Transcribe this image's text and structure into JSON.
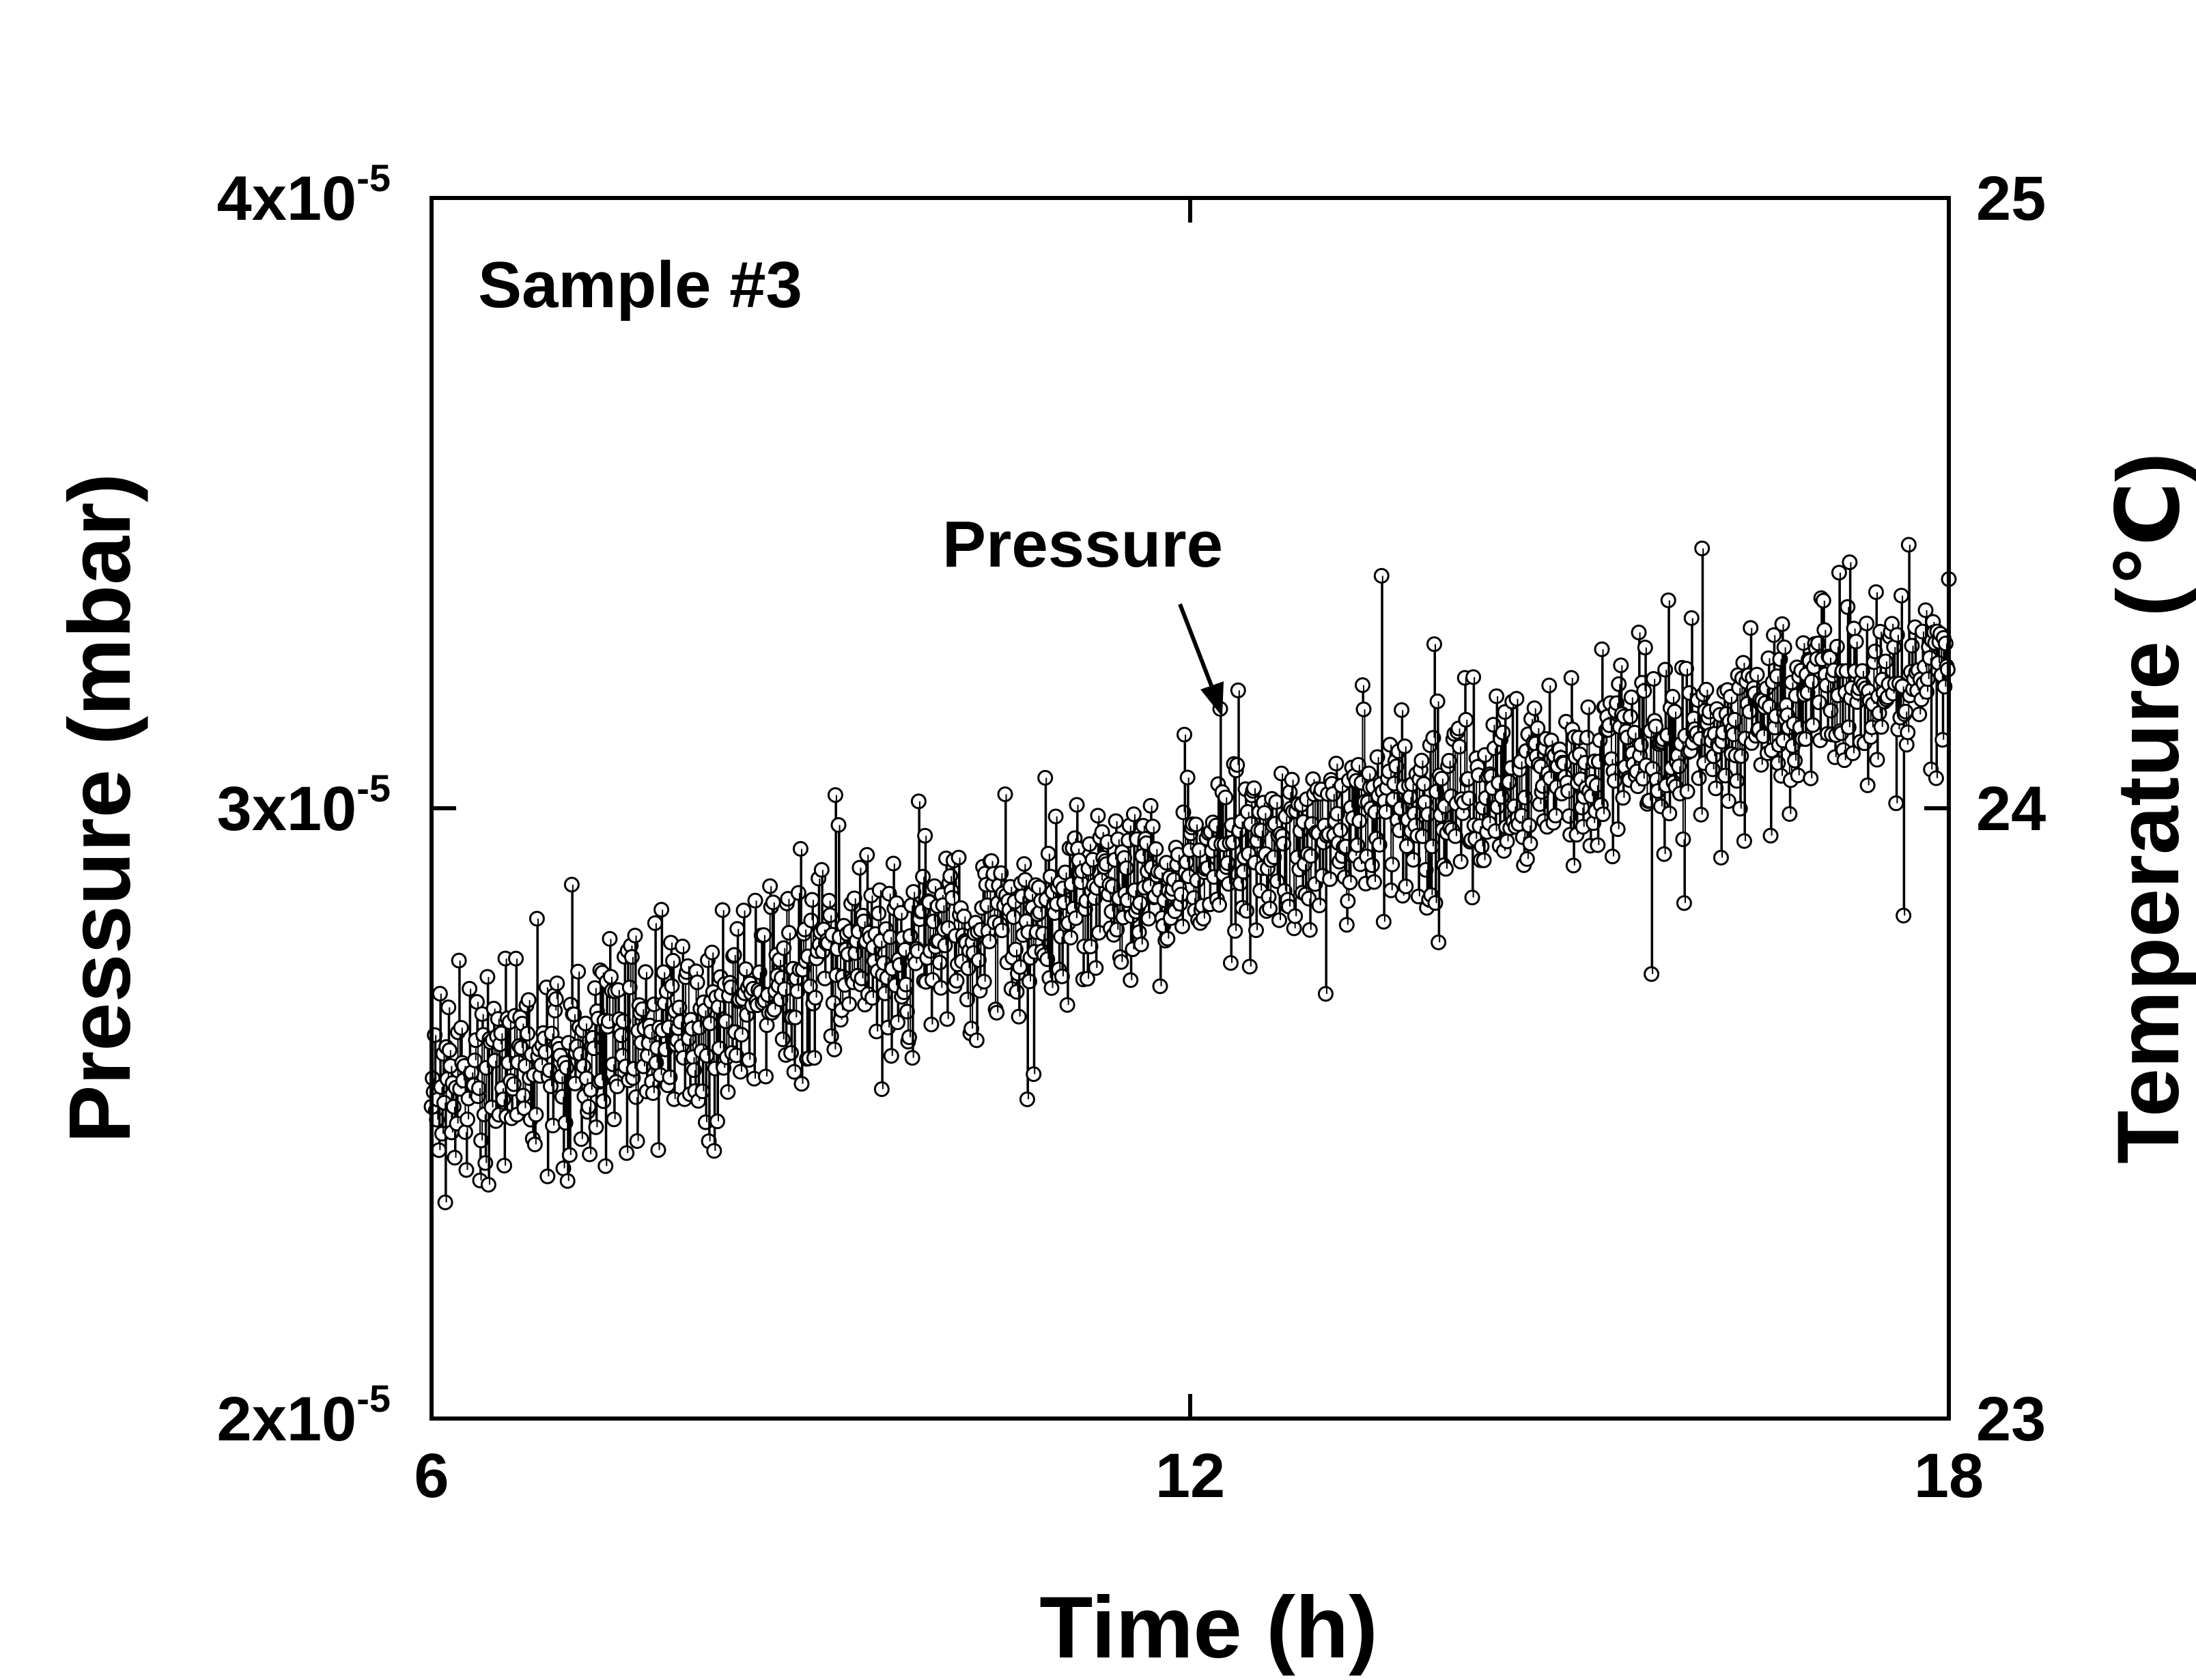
{
  "chart_data": {
    "type": "scatter",
    "title": "",
    "panel_label": "Sample #3",
    "xlabel": "Time (h)",
    "ylabel_left": "Pressure (mbar)",
    "ylabel_right": "Temperature (℃)",
    "xlim": [
      6,
      18
    ],
    "ylim_left": [
      2e-05,
      4e-05
    ],
    "ylim_right": [
      23,
      25
    ],
    "x_ticks": [
      {
        "value": 6,
        "label": "6"
      },
      {
        "value": 12,
        "label": "12"
      },
      {
        "value": 18,
        "label": "18"
      }
    ],
    "y_left_ticks": [
      {
        "value": 2e-05,
        "mantissa": "2x10",
        "exponent": "-5"
      },
      {
        "value": 3e-05,
        "mantissa": "3x10",
        "exponent": "-5"
      },
      {
        "value": 4e-05,
        "mantissa": "4x10",
        "exponent": "-5"
      }
    ],
    "y_right_ticks": [
      {
        "value": 23,
        "label": "23"
      },
      {
        "value": 24,
        "label": "24"
      },
      {
        "value": 25,
        "label": "25"
      }
    ],
    "annotation": {
      "text": "Pressure",
      "points_to": {
        "x": 12.2,
        "y": 3.12e-05
      }
    },
    "series": [
      {
        "name": "Pressure",
        "axis": "left",
        "marker": "open-circle",
        "x_start": 6.0,
        "x_end": 18.0,
        "n_points": 1440,
        "trend_start": 2.55e-05,
        "trend_end": 3.24e-05,
        "scatter_sd": 8e-07,
        "x": [
          6,
          7,
          8,
          9,
          10,
          11,
          12,
          13,
          14,
          15,
          16,
          17,
          18
        ],
        "y": [
          2.55e-05,
          2.61e-05,
          2.66e-05,
          2.72e-05,
          2.78e-05,
          2.84e-05,
          2.9e-05,
          2.96e-05,
          3.01e-05,
          3.07e-05,
          3.13e-05,
          3.18e-05,
          3.24e-05
        ]
      }
    ]
  }
}
